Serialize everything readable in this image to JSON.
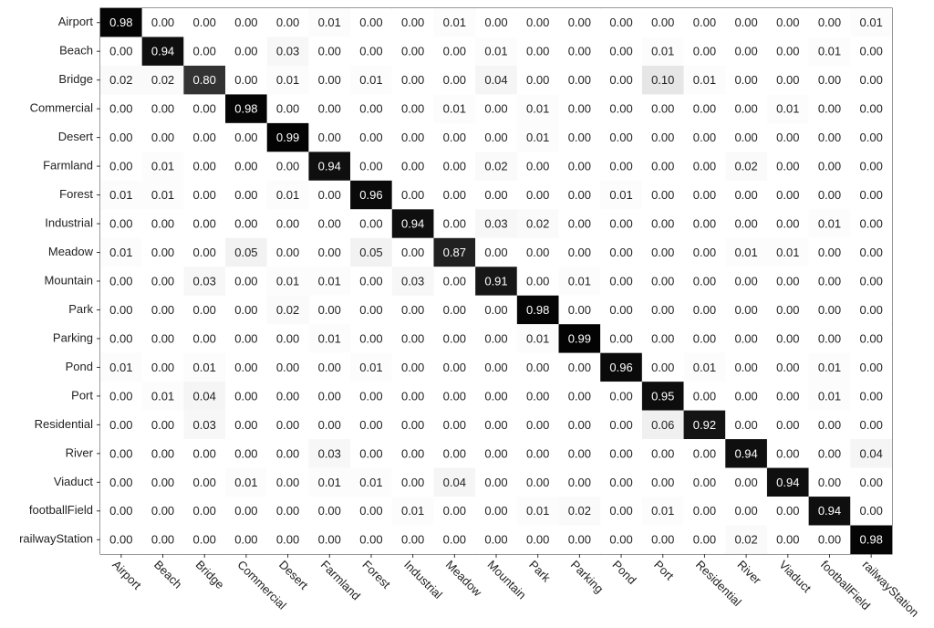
{
  "chart_data": {
    "type": "heatmap",
    "categories": [
      "Airport",
      "Beach",
      "Bridge",
      "Commercial",
      "Desert",
      "Farmland",
      "Forest",
      "Industrial",
      "Meadow",
      "Mountain",
      "Park",
      "Parking",
      "Pond",
      "Port",
      "Residential",
      "River",
      "Viaduct",
      "footballField",
      "railwayStation"
    ],
    "color_range": [
      "#ffffff",
      "#000000"
    ],
    "values": [
      [
        0.98,
        0,
        0,
        0,
        0,
        0.01,
        0,
        0,
        0.01,
        0,
        0,
        0,
        0,
        0,
        0,
        0,
        0,
        0,
        0.01
      ],
      [
        0,
        0.94,
        0,
        0,
        0.03,
        0,
        0,
        0,
        0,
        0.01,
        0,
        0,
        0,
        0.01,
        0,
        0,
        0,
        0.01,
        0
      ],
      [
        0.02,
        0.02,
        0.8,
        0,
        0.01,
        0,
        0.01,
        0,
        0,
        0.04,
        0,
        0,
        0,
        0.1,
        0.01,
        0,
        0,
        0,
        0
      ],
      [
        0,
        0,
        0,
        0.98,
        0,
        0,
        0,
        0,
        0.01,
        0,
        0.01,
        0,
        0,
        0,
        0,
        0,
        0.01,
        0,
        0
      ],
      [
        0,
        0,
        0,
        0,
        0.99,
        0,
        0,
        0,
        0,
        0,
        0.01,
        0,
        0,
        0,
        0,
        0,
        0,
        0,
        0
      ],
      [
        0,
        0.01,
        0,
        0,
        0,
        0.94,
        0,
        0,
        0,
        0.02,
        0,
        0,
        0,
        0,
        0,
        0.02,
        0,
        0,
        0
      ],
      [
        0.01,
        0.01,
        0,
        0,
        0.01,
        0,
        0.96,
        0,
        0,
        0,
        0,
        0,
        0.01,
        0,
        0,
        0,
        0,
        0,
        0
      ],
      [
        0,
        0,
        0,
        0,
        0,
        0,
        0,
        0.94,
        0,
        0.03,
        0.02,
        0,
        0,
        0,
        0,
        0,
        0,
        0.01,
        0
      ],
      [
        0.01,
        0,
        0,
        0.05,
        0,
        0,
        0.05,
        0,
        0.87,
        0,
        0,
        0,
        0,
        0,
        0,
        0.01,
        0.01,
        0,
        0
      ],
      [
        0,
        0,
        0.03,
        0,
        0.01,
        0.01,
        0,
        0.03,
        0,
        0.91,
        0,
        0.01,
        0,
        0,
        0,
        0,
        0,
        0,
        0
      ],
      [
        0,
        0,
        0,
        0,
        0.02,
        0,
        0,
        0,
        0,
        0,
        0.98,
        0,
        0,
        0,
        0,
        0,
        0,
        0,
        0
      ],
      [
        0,
        0,
        0,
        0,
        0,
        0.01,
        0,
        0,
        0,
        0,
        0.01,
        0.99,
        0,
        0,
        0,
        0,
        0,
        0,
        0
      ],
      [
        0.01,
        0,
        0.01,
        0,
        0,
        0,
        0.01,
        0,
        0,
        0,
        0,
        0,
        0.96,
        0,
        0.01,
        0,
        0,
        0.01,
        0
      ],
      [
        0,
        0.01,
        0.04,
        0,
        0,
        0,
        0,
        0,
        0,
        0,
        0,
        0,
        0,
        0.95,
        0,
        0,
        0,
        0.01,
        0
      ],
      [
        0,
        0,
        0.03,
        0,
        0,
        0,
        0,
        0,
        0,
        0,
        0,
        0,
        0,
        0.06,
        0.92,
        0,
        0,
        0,
        0
      ],
      [
        0,
        0,
        0,
        0,
        0,
        0.03,
        0,
        0,
        0,
        0,
        0,
        0,
        0,
        0,
        0,
        0.94,
        0,
        0,
        0.04
      ],
      [
        0,
        0,
        0,
        0.01,
        0,
        0.01,
        0.01,
        0,
        0.04,
        0,
        0,
        0,
        0,
        0,
        0,
        0,
        0.94,
        0,
        0
      ],
      [
        0,
        0,
        0,
        0,
        0,
        0,
        0,
        0.01,
        0,
        0,
        0.01,
        0.02,
        0,
        0.01,
        0,
        0,
        0,
        0.94,
        0
      ],
      [
        0,
        0,
        0,
        0,
        0,
        0,
        0,
        0,
        0,
        0,
        0,
        0,
        0,
        0,
        0,
        0.02,
        0,
        0,
        0.98
      ]
    ],
    "value_labels": [
      [
        "0.98",
        "0.00",
        "0.00",
        "0.00",
        "0.00",
        "0.01",
        "0.00",
        "0.00",
        "0.01",
        "0.00",
        "0.00",
        "0.00",
        "0.00",
        "0.00",
        "0.00",
        "0.00",
        "0.00",
        "0.00",
        "0.01"
      ],
      [
        "0.00",
        "0.94",
        "0.00",
        "0.00",
        "0.03",
        "0.00",
        "0.00",
        "0.00",
        "0.00",
        "0.01",
        "0.00",
        "0.00",
        "0.00",
        "0.01",
        "0.00",
        "0.00",
        "0.00",
        "0.01",
        "0.00"
      ],
      [
        "0.02",
        "0.02",
        "0.80",
        "0.00",
        "0.01",
        "0.00",
        "0.01",
        "0.00",
        "0.00",
        "0.04",
        "0.00",
        "0.00",
        "0.00",
        "0.10",
        "0.01",
        "0.00",
        "0.00",
        "0.00",
        "0.00"
      ],
      [
        "0.00",
        "0.00",
        "0.00",
        "0.98",
        "0.00",
        "0.00",
        "0.00",
        "0.00",
        "0.01",
        "0.00",
        "0.01",
        "0.00",
        "0.00",
        "0.00",
        "0.00",
        "0.00",
        "0.01",
        "0.00",
        "0.00"
      ],
      [
        "0.00",
        "0.00",
        "0.00",
        "0.00",
        "0.99",
        "0.00",
        "0.00",
        "0.00",
        "0.00",
        "0.00",
        "0.01",
        "0.00",
        "0.00",
        "0.00",
        "0.00",
        "0.00",
        "0.00",
        "0.00",
        "0.00"
      ],
      [
        "0.00",
        "0.01",
        "0.00",
        "0.00",
        "0.00",
        "0.94",
        "0.00",
        "0.00",
        "0.00",
        "0.02",
        "0.00",
        "0.00",
        "0.00",
        "0.00",
        "0.00",
        "0.02",
        "0.00",
        "0.00",
        "0.00"
      ],
      [
        "0.01",
        "0.01",
        "0.00",
        "0.00",
        "0.01",
        "0.00",
        "0.96",
        "0.00",
        "0.00",
        "0.00",
        "0.00",
        "0.00",
        "0.01",
        "0.00",
        "0.00",
        "0.00",
        "0.00",
        "0.00",
        "0.00"
      ],
      [
        "0.00",
        "0.00",
        "0.00",
        "0.00",
        "0.00",
        "0.00",
        "0.00",
        "0.94",
        "0.00",
        "0.03",
        "0.02",
        "0.00",
        "0.00",
        "0.00",
        "0.00",
        "0.00",
        "0.00",
        "0.01",
        "0.00"
      ],
      [
        "0.01",
        "0.00",
        "0.00",
        "0.05",
        "0.00",
        "0.00",
        "0.05",
        "0.00",
        "0.87",
        "0.00",
        "0.00",
        "0.00",
        "0.00",
        "0.00",
        "0.00",
        "0.01",
        "0.01",
        "0.00",
        "0.00"
      ],
      [
        "0.00",
        "0.00",
        "0.03",
        "0.00",
        "0.01",
        "0.01",
        "0.00",
        "0.03",
        "0.00",
        "0.91",
        "0.00",
        "0.01",
        "0.00",
        "0.00",
        "0.00",
        "0.00",
        "0.00",
        "0.00",
        "0.00"
      ],
      [
        "0.00",
        "0.00",
        "0.00",
        "0.00",
        "0.02",
        "0.00",
        "0.00",
        "0.00",
        "0.00",
        "0.00",
        "0.98",
        "0.00",
        "0.00",
        "0.00",
        "0.00",
        "0.00",
        "0.00",
        "0.00",
        "0.00"
      ],
      [
        "0.00",
        "0.00",
        "0.00",
        "0.00",
        "0.00",
        "0.01",
        "0.00",
        "0.00",
        "0.00",
        "0.00",
        "0.01",
        "0.99",
        "0.00",
        "0.00",
        "0.00",
        "0.00",
        "0.00",
        "0.00",
        "0.00"
      ],
      [
        "0.01",
        "0.00",
        "0.01",
        "0.00",
        "0.00",
        "0.00",
        "0.01",
        "0.00",
        "0.00",
        "0.00",
        "0.00",
        "0.00",
        "0.96",
        "0.00",
        "0.01",
        "0.00",
        "0.00",
        "0.01",
        "0.00"
      ],
      [
        "0.00",
        "0.01",
        "0.04",
        "0.00",
        "0.00",
        "0.00",
        "0.00",
        "0.00",
        "0.00",
        "0.00",
        "0.00",
        "0.00",
        "0.00",
        "0.95",
        "0.00",
        "0.00",
        "0.00",
        "0.01",
        "0.00"
      ],
      [
        "0.00",
        "0.00",
        "0.03",
        "0.00",
        "0.00",
        "0.00",
        "0.00",
        "0.00",
        "0.00",
        "0.00",
        "0.00",
        "0.00",
        "0.00",
        "0.06",
        "0.92",
        "0.00",
        "0.00",
        "0.00",
        "0.00"
      ],
      [
        "0.00",
        "0.00",
        "0.00",
        "0.00",
        "0.00",
        "0.03",
        "0.00",
        "0.00",
        "0.00",
        "0.00",
        "0.00",
        "0.00",
        "0.00",
        "0.00",
        "0.00",
        "0.94",
        "0.00",
        "0.00",
        "0.04"
      ],
      [
        "0.00",
        "0.00",
        "0.00",
        "0.01",
        "0.00",
        "0.01",
        "0.01",
        "0.00",
        "0.04",
        "0.00",
        "0.00",
        "0.00",
        "0.00",
        "0.00",
        "0.00",
        "0.00",
        "0.94",
        "0.00",
        "0.00"
      ],
      [
        "0.00",
        "0.00",
        "0.00",
        "0.00",
        "0.00",
        "0.00",
        "0.00",
        "0.01",
        "0.00",
        "0.00",
        "0.01",
        "0.02",
        "0.00",
        "0.01",
        "0.00",
        "0.00",
        "0.00",
        "0.94",
        "0.00"
      ],
      [
        "0.00",
        "0.00",
        "0.00",
        "0.00",
        "0.00",
        "0.00",
        "0.00",
        "0.00",
        "0.00",
        "0.00",
        "0.00",
        "0.00",
        "0.00",
        "0.00",
        "0.00",
        "0.02",
        "0.00",
        "0.00",
        "0.98"
      ]
    ]
  }
}
